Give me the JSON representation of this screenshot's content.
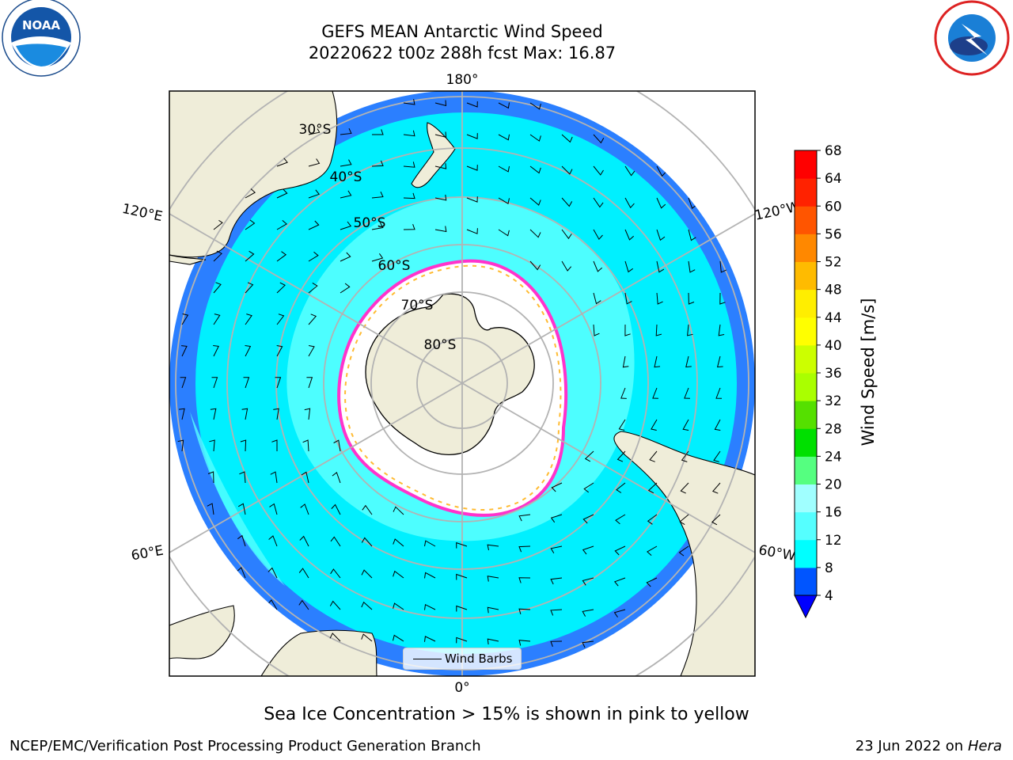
{
  "title": {
    "line1": "GEFS MEAN Antarctic Wind Speed",
    "line2": "20220622 t00z 288h fcst   Max: 16.87"
  },
  "map": {
    "projection": "south-polar-stereographic",
    "lon_labels": {
      "top": "180°",
      "bottom": "0°",
      "left_upper": "120°E",
      "right_upper": "120°W",
      "left_lower": "60°E",
      "right_lower": "60°W"
    },
    "lat_labels": [
      "30°S",
      "40°S",
      "50°S",
      "60°S",
      "70°S",
      "80°S"
    ],
    "legend": {
      "wind_barbs": "Wind Barbs"
    }
  },
  "colorbar": {
    "label": "Wind Speed [m/s]",
    "ticks": [
      "4",
      "8",
      "12",
      "16",
      "20",
      "24",
      "28",
      "32",
      "36",
      "40",
      "44",
      "48",
      "52",
      "56",
      "60",
      "64",
      "68"
    ],
    "colors": [
      "#0055ff",
      "#00ffff",
      "#55ffff",
      "#a0ffff",
      "#55ff80",
      "#00e000",
      "#55e000",
      "#aaff00",
      "#ccff00",
      "#ffff00",
      "#ffee00",
      "#ffbb00",
      "#ff8800",
      "#ff5500",
      "#ff2200",
      "#ff0000"
    ],
    "under_color": "#0000ff"
  },
  "colors": {
    "land": "#efedd9",
    "sea_ice": "#ffffff",
    "ocean_high": "#2b7fff",
    "ocean_mid": "#00f0ff",
    "ocean_low": "#55ffff",
    "ice_edge": "#ff33cc",
    "ice_edge_inner": "#ffbb33"
  },
  "note": "Sea Ice Concentration > 15% is shown in pink to yellow",
  "footer": {
    "left": "NCEP/EMC/Verification Post Processing Product Generation Branch",
    "date": "23 Jun 2022 on",
    "machine": "Hera"
  },
  "logos": {
    "noaa": "NOAA",
    "nws": "NATIONAL WEATHER SERVICE"
  }
}
